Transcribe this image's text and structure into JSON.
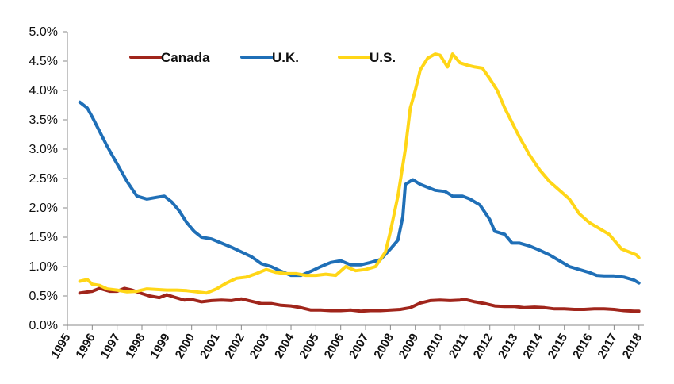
{
  "chart_data": {
    "type": "line",
    "title": "",
    "xlabel": "",
    "ylabel": "",
    "xlim": [
      1995,
      2018.2
    ],
    "ylim": [
      0,
      5
    ],
    "y_ticks": [
      "0.0%",
      "0.5%",
      "1.0%",
      "1.5%",
      "2.0%",
      "2.5%",
      "3.0%",
      "3.5%",
      "4.0%",
      "4.5%",
      "5.0%"
    ],
    "x_ticks": [
      "1995",
      "1996",
      "1997",
      "1998",
      "1999",
      "2000",
      "2001",
      "2002",
      "2003",
      "2004",
      "2005",
      "2006",
      "2007",
      "2008",
      "2009",
      "2010",
      "2011",
      "2012",
      "2013",
      "2014",
      "2015",
      "2016",
      "2017",
      "2018"
    ],
    "grid": false,
    "legend_position": "top-left",
    "series": [
      {
        "name": "Canada",
        "color": "#A0251B",
        "points": [
          [
            1995.5,
            0.55
          ],
          [
            1996,
            0.58
          ],
          [
            1996.3,
            0.63
          ],
          [
            1996.7,
            0.58
          ],
          [
            1997,
            0.58
          ],
          [
            1997.3,
            0.63
          ],
          [
            1997.6,
            0.6
          ],
          [
            1998,
            0.54
          ],
          [
            1998.3,
            0.5
          ],
          [
            1998.7,
            0.47
          ],
          [
            1999,
            0.52
          ],
          [
            1999.3,
            0.48
          ],
          [
            1999.7,
            0.43
          ],
          [
            2000,
            0.44
          ],
          [
            2000.4,
            0.4
          ],
          [
            2000.8,
            0.42
          ],
          [
            2001.2,
            0.43
          ],
          [
            2001.6,
            0.42
          ],
          [
            2002,
            0.45
          ],
          [
            2002.4,
            0.41
          ],
          [
            2002.8,
            0.37
          ],
          [
            2003.2,
            0.37
          ],
          [
            2003.6,
            0.34
          ],
          [
            2004,
            0.33
          ],
          [
            2004.4,
            0.3
          ],
          [
            2004.8,
            0.26
          ],
          [
            2005.2,
            0.26
          ],
          [
            2005.6,
            0.25
          ],
          [
            2006,
            0.25
          ],
          [
            2006.4,
            0.26
          ],
          [
            2006.8,
            0.24
          ],
          [
            2007.2,
            0.25
          ],
          [
            2007.6,
            0.25
          ],
          [
            2008,
            0.26
          ],
          [
            2008.4,
            0.27
          ],
          [
            2008.8,
            0.3
          ],
          [
            2009.2,
            0.38
          ],
          [
            2009.6,
            0.42
          ],
          [
            2010,
            0.43
          ],
          [
            2010.4,
            0.42
          ],
          [
            2010.8,
            0.43
          ],
          [
            2011,
            0.44
          ],
          [
            2011.4,
            0.4
          ],
          [
            2011.8,
            0.37
          ],
          [
            2012.2,
            0.33
          ],
          [
            2012.6,
            0.32
          ],
          [
            2013,
            0.32
          ],
          [
            2013.4,
            0.3
          ],
          [
            2013.8,
            0.31
          ],
          [
            2014.2,
            0.3
          ],
          [
            2014.6,
            0.28
          ],
          [
            2015,
            0.28
          ],
          [
            2015.4,
            0.27
          ],
          [
            2015.8,
            0.27
          ],
          [
            2016.2,
            0.28
          ],
          [
            2016.6,
            0.28
          ],
          [
            2017,
            0.27
          ],
          [
            2017.4,
            0.25
          ],
          [
            2017.8,
            0.24
          ],
          [
            2018,
            0.24
          ]
        ]
      },
      {
        "name": "U.K.",
        "color": "#1F6FB7",
        "points": [
          [
            1995.5,
            3.8
          ],
          [
            1995.8,
            3.7
          ],
          [
            1996,
            3.55
          ],
          [
            1996.3,
            3.3
          ],
          [
            1996.6,
            3.05
          ],
          [
            1997,
            2.75
          ],
          [
            1997.4,
            2.45
          ],
          [
            1997.8,
            2.2
          ],
          [
            1998.2,
            2.15
          ],
          [
            1998.6,
            2.18
          ],
          [
            1998.9,
            2.2
          ],
          [
            1999.2,
            2.1
          ],
          [
            1999.5,
            1.95
          ],
          [
            1999.8,
            1.75
          ],
          [
            2000.1,
            1.6
          ],
          [
            2000.4,
            1.5
          ],
          [
            2000.8,
            1.47
          ],
          [
            2001.2,
            1.4
          ],
          [
            2001.6,
            1.33
          ],
          [
            2002,
            1.25
          ],
          [
            2002.4,
            1.17
          ],
          [
            2002.8,
            1.05
          ],
          [
            2003.2,
            1.0
          ],
          [
            2003.6,
            0.92
          ],
          [
            2004,
            0.85
          ],
          [
            2004.4,
            0.85
          ],
          [
            2004.8,
            0.92
          ],
          [
            2005.2,
            1.0
          ],
          [
            2005.6,
            1.07
          ],
          [
            2006,
            1.1
          ],
          [
            2006.4,
            1.03
          ],
          [
            2006.8,
            1.03
          ],
          [
            2007.2,
            1.07
          ],
          [
            2007.6,
            1.12
          ],
          [
            2008,
            1.3
          ],
          [
            2008.3,
            1.45
          ],
          [
            2008.5,
            1.85
          ],
          [
            2008.6,
            2.4
          ],
          [
            2008.9,
            2.48
          ],
          [
            2009.2,
            2.4
          ],
          [
            2009.5,
            2.35
          ],
          [
            2009.8,
            2.3
          ],
          [
            2010.2,
            2.28
          ],
          [
            2010.5,
            2.2
          ],
          [
            2010.9,
            2.2
          ],
          [
            2011.2,
            2.15
          ],
          [
            2011.6,
            2.05
          ],
          [
            2012,
            1.8
          ],
          [
            2012.2,
            1.6
          ],
          [
            2012.6,
            1.55
          ],
          [
            2012.9,
            1.4
          ],
          [
            2013.2,
            1.4
          ],
          [
            2013.6,
            1.35
          ],
          [
            2014,
            1.28
          ],
          [
            2014.4,
            1.2
          ],
          [
            2014.8,
            1.1
          ],
          [
            2015.2,
            1.0
          ],
          [
            2015.6,
            0.95
          ],
          [
            2016,
            0.9
          ],
          [
            2016.3,
            0.85
          ],
          [
            2016.6,
            0.84
          ],
          [
            2017,
            0.84
          ],
          [
            2017.4,
            0.82
          ],
          [
            2017.8,
            0.77
          ],
          [
            2018,
            0.72
          ]
        ]
      },
      {
        "name": "U.S.",
        "color": "#FFD617",
        "points": [
          [
            1995.5,
            0.75
          ],
          [
            1995.8,
            0.78
          ],
          [
            1996,
            0.7
          ],
          [
            1996.3,
            0.68
          ],
          [
            1996.6,
            0.62
          ],
          [
            1997,
            0.6
          ],
          [
            1997.4,
            0.57
          ],
          [
            1997.8,
            0.58
          ],
          [
            1998.2,
            0.62
          ],
          [
            1998.6,
            0.61
          ],
          [
            1999,
            0.6
          ],
          [
            1999.4,
            0.6
          ],
          [
            1999.8,
            0.59
          ],
          [
            2000.2,
            0.57
          ],
          [
            2000.6,
            0.55
          ],
          [
            2001,
            0.62
          ],
          [
            2001.4,
            0.72
          ],
          [
            2001.8,
            0.8
          ],
          [
            2002.2,
            0.82
          ],
          [
            2002.6,
            0.88
          ],
          [
            2003,
            0.95
          ],
          [
            2003.4,
            0.9
          ],
          [
            2003.8,
            0.88
          ],
          [
            2004.2,
            0.88
          ],
          [
            2004.6,
            0.85
          ],
          [
            2005,
            0.85
          ],
          [
            2005.4,
            0.87
          ],
          [
            2005.8,
            0.85
          ],
          [
            2006.2,
            1.0
          ],
          [
            2006.6,
            0.93
          ],
          [
            2007,
            0.95
          ],
          [
            2007.4,
            1.0
          ],
          [
            2007.8,
            1.25
          ],
          [
            2008,
            1.6
          ],
          [
            2008.3,
            2.2
          ],
          [
            2008.6,
            3.0
          ],
          [
            2008.8,
            3.7
          ],
          [
            2009,
            4.0
          ],
          [
            2009.2,
            4.35
          ],
          [
            2009.5,
            4.55
          ],
          [
            2009.8,
            4.62
          ],
          [
            2010,
            4.6
          ],
          [
            2010.3,
            4.4
          ],
          [
            2010.5,
            4.62
          ],
          [
            2010.8,
            4.47
          ],
          [
            2011.1,
            4.43
          ],
          [
            2011.4,
            4.4
          ],
          [
            2011.7,
            4.38
          ],
          [
            2012,
            4.2
          ],
          [
            2012.3,
            4.0
          ],
          [
            2012.6,
            3.7
          ],
          [
            2012.9,
            3.45
          ],
          [
            2013.2,
            3.2
          ],
          [
            2013.6,
            2.9
          ],
          [
            2014,
            2.65
          ],
          [
            2014.4,
            2.45
          ],
          [
            2014.8,
            2.3
          ],
          [
            2015.2,
            2.15
          ],
          [
            2015.6,
            1.9
          ],
          [
            2016,
            1.75
          ],
          [
            2016.4,
            1.65
          ],
          [
            2016.8,
            1.55
          ],
          [
            2017,
            1.45
          ],
          [
            2017.3,
            1.3
          ],
          [
            2017.6,
            1.25
          ],
          [
            2017.9,
            1.2
          ],
          [
            2018,
            1.15
          ]
        ]
      }
    ]
  }
}
